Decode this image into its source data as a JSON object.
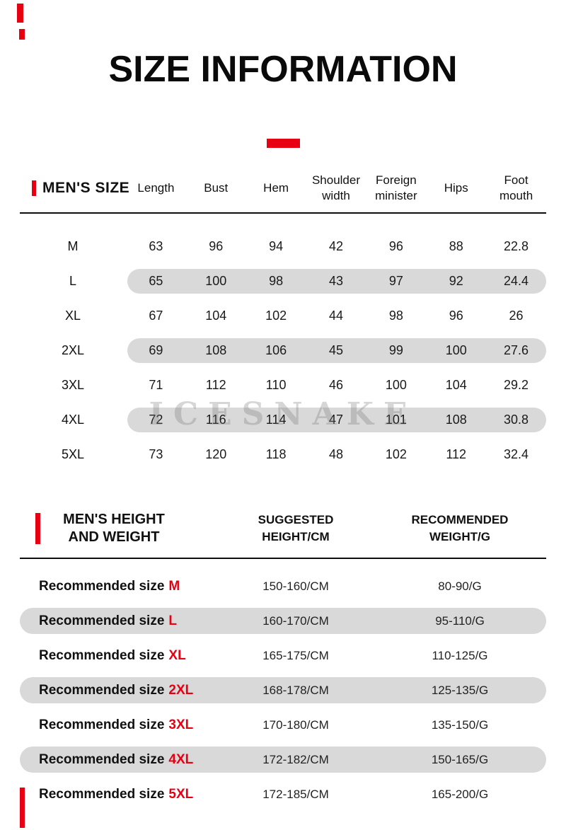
{
  "page": {
    "title": "SIZE INFORMATION",
    "watermark": "ICESNAKE"
  },
  "colors": {
    "accent_red": "#e60012",
    "row_shade": "#d9d9d9",
    "text": "#1a1a1a"
  },
  "size_table": {
    "section_title": "MEN'S SIZE",
    "headers": [
      "Length",
      "Bust",
      "Hem",
      "Shoulder width",
      "Foreign minister",
      "Hips",
      "Foot mouth"
    ],
    "rows": [
      {
        "size": "M",
        "values": [
          "63",
          "96",
          "94",
          "42",
          "96",
          "88",
          "22.8"
        ]
      },
      {
        "size": "L",
        "values": [
          "65",
          "100",
          "98",
          "43",
          "97",
          "92",
          "24.4"
        ]
      },
      {
        "size": "XL",
        "values": [
          "67",
          "104",
          "102",
          "44",
          "98",
          "96",
          "26"
        ]
      },
      {
        "size": "2XL",
        "values": [
          "69",
          "108",
          "106",
          "45",
          "99",
          "100",
          "27.6"
        ]
      },
      {
        "size": "3XL",
        "values": [
          "71",
          "112",
          "110",
          "46",
          "100",
          "104",
          "29.2"
        ]
      },
      {
        "size": "4XL",
        "values": [
          "72",
          "116",
          "114",
          "47",
          "101",
          "108",
          "30.8"
        ]
      },
      {
        "size": "5XL",
        "values": [
          "73",
          "120",
          "118",
          "48",
          "102",
          "112",
          "32.4"
        ]
      }
    ]
  },
  "height_weight_table": {
    "section_title": "MEN'S HEIGHT AND WEIGHT",
    "label_prefix": "Recommended size",
    "col_headers": [
      "SUGGESTED HEIGHT/CM",
      "RECOMMENDED WEIGHT/G"
    ],
    "rows": [
      {
        "size": "M",
        "height": "150-160/CM",
        "weight": "80-90/G"
      },
      {
        "size": "L",
        "height": "160-170/CM",
        "weight": "95-110/G"
      },
      {
        "size": "XL",
        "height": "165-175/CM",
        "weight": "110-125/G"
      },
      {
        "size": "2XL",
        "height": "168-178/CM",
        "weight": "125-135/G"
      },
      {
        "size": "3XL",
        "height": "170-180/CM",
        "weight": "135-150/G"
      },
      {
        "size": "4XL",
        "height": "172-182/CM",
        "weight": "150-165/G"
      },
      {
        "size": "5XL",
        "height": "172-185/CM",
        "weight": "165-200/G"
      }
    ]
  },
  "chart_data": [
    {
      "type": "table",
      "title": "MEN'S SIZE",
      "columns": [
        "Size",
        "Length",
        "Bust",
        "Hem",
        "Shoulder width",
        "Foreign minister",
        "Hips",
        "Foot mouth"
      ],
      "rows": [
        [
          "M",
          63,
          96,
          94,
          42,
          96,
          88,
          22.8
        ],
        [
          "L",
          65,
          100,
          98,
          43,
          97,
          92,
          24.4
        ],
        [
          "XL",
          67,
          104,
          102,
          44,
          98,
          96,
          26
        ],
        [
          "2XL",
          69,
          108,
          106,
          45,
          99,
          100,
          27.6
        ],
        [
          "3XL",
          71,
          112,
          110,
          46,
          100,
          104,
          29.2
        ],
        [
          "4XL",
          72,
          116,
          114,
          47,
          101,
          108,
          30.8
        ],
        [
          "5XL",
          73,
          120,
          118,
          48,
          102,
          112,
          32.4
        ]
      ]
    },
    {
      "type": "table",
      "title": "MEN'S HEIGHT AND WEIGHT",
      "columns": [
        "Size",
        "SUGGESTED HEIGHT/CM",
        "RECOMMENDED WEIGHT/G"
      ],
      "rows": [
        [
          "Recommended size M",
          "150-160/CM",
          "80-90/G"
        ],
        [
          "Recommended size L",
          "160-170/CM",
          "95-110/G"
        ],
        [
          "Recommended size XL",
          "165-175/CM",
          "110-125/G"
        ],
        [
          "Recommended size 2XL",
          "168-178/CM",
          "125-135/G"
        ],
        [
          "Recommended size 3XL",
          "170-180/CM",
          "135-150/G"
        ],
        [
          "Recommended size 4XL",
          "172-182/CM",
          "150-165/G"
        ],
        [
          "Recommended size 5XL",
          "172-185/CM",
          "165-200/G"
        ]
      ]
    }
  ]
}
